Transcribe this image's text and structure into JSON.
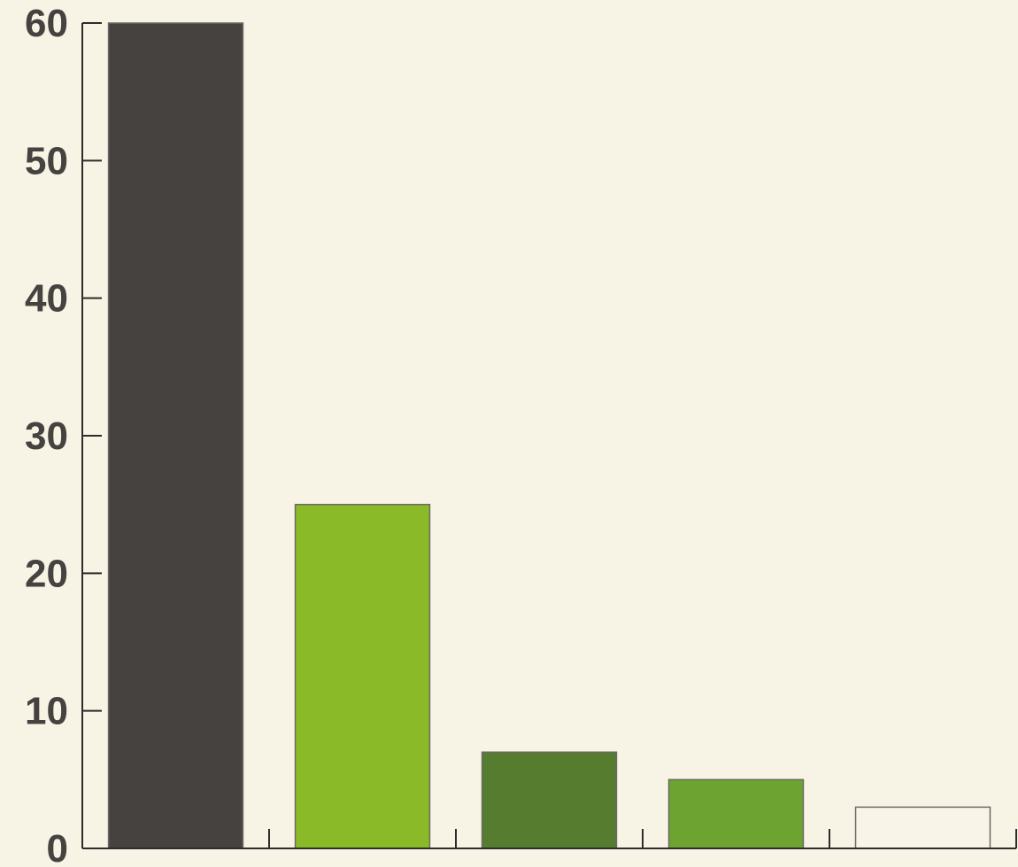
{
  "chart_data": {
    "type": "bar",
    "categories": [
      "",
      "",
      "",
      "",
      ""
    ],
    "values": [
      60,
      25,
      7,
      5,
      3
    ],
    "colors": [
      "#45423f",
      "#8aba27",
      "#557c2f",
      "#6ca331",
      "#f8f5e8"
    ],
    "ylim": [
      0,
      60
    ],
    "yticks": [
      0,
      10,
      20,
      30,
      40,
      50,
      60
    ],
    "title": "",
    "xlabel": "",
    "ylabel": "",
    "grid": false,
    "legend": "none",
    "background": "#f7f4e6"
  }
}
